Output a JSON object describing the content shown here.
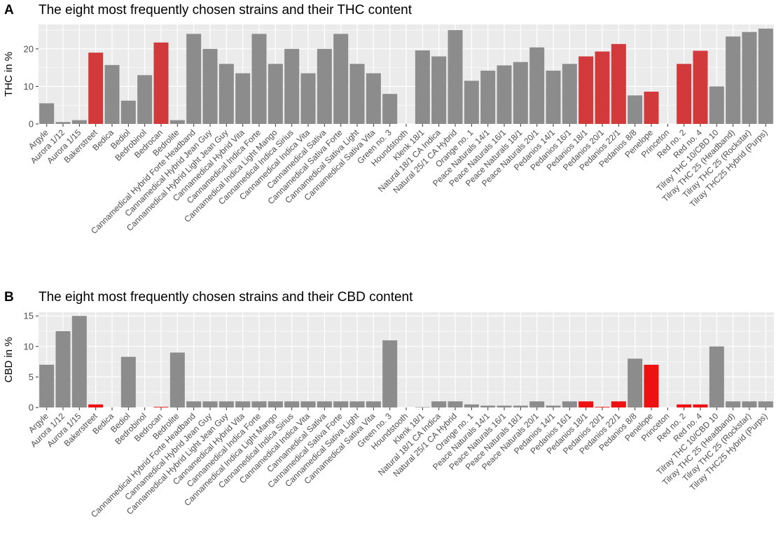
{
  "chart_data": [
    {
      "panel": "A",
      "type": "bar",
      "title": "The eight most frequently chosen strains and their THC content",
      "xlabel": "",
      "ylabel": "THC in %",
      "ylim": [
        0,
        26.5
      ],
      "yticks": [
        "0",
        "10",
        "20"
      ],
      "yticks_values": [
        0,
        10,
        20
      ],
      "grid": true,
      "categories": [
        "Argyle",
        "Aurora 1/12",
        "Aurora 1/15",
        "Bakerstreet",
        "Bedica",
        "Bediol",
        "Bedrobinol",
        "Bedrocan",
        "Bedrolite",
        "Cannamedical Hybrid Forte Headband",
        "Cannamedical Hybrid Jean Guy",
        "Cannamedical Hybrid Light Jean Guy",
        "Cannamedical Hybrid Vita",
        "Cannamedical Indica Forte",
        "Cannamedical Indica Light Mango",
        "Cannamedical Indica Sirius",
        "Cannamedical Indica Vita",
        "Cannamedical Sativa",
        "Cannamedical Sativa Forte",
        "Cannamedical Sativa Light",
        "Cannamedical Sativa Vita",
        "Green no. 3",
        "Houndstooth",
        "Klenk 18/1",
        "Natural 18/1 CA Indica",
        "Natural 25/1 CA Hybrid",
        "Orange no. 1",
        "Peace Naturals 14/1",
        "Peace Naturals 16/1",
        "Peace Naturals 18/1",
        "Peace Naturals 20/1",
        "Pedanios 14/1",
        "Pedanios 16/1",
        "Pedanios 18/1",
        "Pedanios 20/1",
        "Pedanios 22/1",
        "Pedanios 8/8",
        "Penelope",
        "Princeton",
        "Red no. 2",
        "Red no. 4",
        "Tilray THC 10/CBD 10",
        "Tilray THC 25 (Headband)",
        "Tilray THC 25 (Rockstar)",
        "Tilray THC25 Hybrid (Purps)"
      ],
      "values": [
        5.5,
        0.5,
        1,
        19,
        15.7,
        6.2,
        13,
        21.7,
        1,
        24,
        20,
        16,
        13.5,
        24,
        16,
        20,
        13.5,
        20,
        24,
        16,
        13.5,
        8,
        0,
        19.6,
        18,
        25,
        11.5,
        14.2,
        15.6,
        16.5,
        20.4,
        14.2,
        16,
        18,
        19.3,
        21.3,
        7.6,
        8.6,
        0,
        16,
        19.5,
        10,
        23.3,
        24.5,
        25.4
      ],
      "highlighted": [
        "Bakerstreet",
        "Bedrocan",
        "Pedanios 18/1",
        "Pedanios 20/1",
        "Pedanios 22/1",
        "Penelope",
        "Red no. 2",
        "Red no. 4"
      ],
      "colors": {
        "default": "#8c8c8c",
        "highlight": "#d2393b",
        "panel_bg": "#ebebeb",
        "grid": "#ffffff"
      }
    },
    {
      "panel": "B",
      "type": "bar",
      "title": "The eight most frequently chosen strains and their CBD content",
      "xlabel": "",
      "ylabel": "CBD in %",
      "ylim": [
        0,
        15.6
      ],
      "yticks": [
        "0",
        "5",
        "10",
        "15"
      ],
      "yticks_values": [
        0,
        5,
        10,
        15
      ],
      "grid": true,
      "categories": [
        "Argyle",
        "Aurora 1/12",
        "Aurora 1/15",
        "Bakerstreet",
        "Bedica",
        "Bediol",
        "Bedrobinol",
        "Bedrocan",
        "Bedrolite",
        "Cannamedical Hybrid Forte Headband",
        "Cannamedical Hybrid Jean Guy",
        "Cannamedical Hybrid Light Jean Guy",
        "Cannamedical Hybrid Vita",
        "Cannamedical Indica Forte",
        "Cannamedical Indica Light Mango",
        "Cannamedical Indica Sirius",
        "Cannamedical Indica Vita",
        "Cannamedical Sativa",
        "Cannamedical Sativa Forte",
        "Cannamedical Sativa Light",
        "Cannamedical Sativa Vita",
        "Green no. 3",
        "Houndstooth",
        "Klenk 18/1",
        "Natural 18/1 CA Indica",
        "Natural 25/1 CA Hybrid",
        "Orange no. 1",
        "Peace Naturals 14/1",
        "Peace Naturals 16/1",
        "Peace Naturals 18/1",
        "Peace Naturals 20/1",
        "Pedanios 14/1",
        "Pedanios 16/1",
        "Pedanios 18/1",
        "Pedanios 20/1",
        "Pedanios 22/1",
        "Pedanios 8/8",
        "Penelope",
        "Princeton",
        "Red no. 2",
        "Red no. 4",
        "Tilray THC 10/CBD 10",
        "Tilray THC 25 (Headband)",
        "Tilray THC 25 (Rockstar)",
        "Tilray THC25 Hybrid (Purps)"
      ],
      "values": [
        7,
        12.5,
        15,
        0.5,
        0,
        8.3,
        0,
        0.1,
        9,
        1,
        1,
        1,
        1,
        1,
        1,
        1,
        1,
        1,
        1,
        1,
        1,
        11,
        0,
        0.05,
        1,
        1,
        0.5,
        0.3,
        0.3,
        0.3,
        1,
        0.3,
        1,
        1,
        0.1,
        1,
        8,
        7,
        0,
        0.5,
        0.5,
        10,
        1,
        1,
        1
      ],
      "highlighted": [
        "Bakerstreet",
        "Bedrocan",
        "Pedanios 18/1",
        "Pedanios 20/1",
        "Pedanios 22/1",
        "Penelope",
        "Red no. 2",
        "Red no. 4"
      ],
      "colors": {
        "default": "#8c8c8c",
        "highlight": "#ee1111",
        "panel_bg": "#ebebeb",
        "grid": "#ffffff"
      }
    }
  ]
}
